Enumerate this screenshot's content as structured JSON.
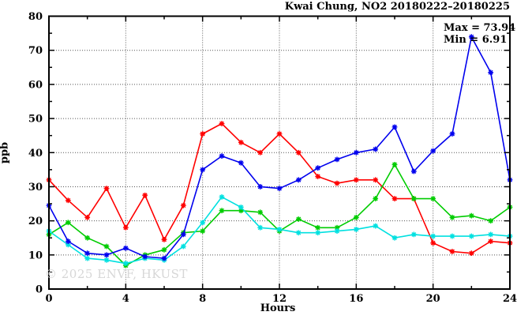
{
  "title": "Kwai Chung, NO2 20180222–20180225",
  "annotation": {
    "max_label": "Max = 73.94",
    "min_label": "Min = 6.91"
  },
  "watermark": "© 2025 ENVF, HKUST",
  "colors": {
    "background": "#ffffff",
    "frame": "#000000",
    "grid": "#555555",
    "text": "#000000",
    "watermark_text": "#d7d7d7"
  },
  "chart_data": {
    "type": "line",
    "title": "Kwai Chung, NO2 20180222–20180225",
    "xlabel": "Hours",
    "ylabel": "ppb",
    "xlim": [
      0,
      24
    ],
    "ylim": [
      0,
      80
    ],
    "grid": true,
    "x_ticks_major": [
      0,
      4,
      8,
      12,
      16,
      20,
      24
    ],
    "x_ticks_minor": [
      2,
      6,
      10,
      14,
      18,
      22
    ],
    "y_ticks_major": [
      0,
      10,
      20,
      30,
      40,
      50,
      60,
      70,
      80
    ],
    "y_ticks_minor": [
      5,
      15,
      25,
      35,
      45,
      55,
      65,
      75
    ],
    "max": 73.94,
    "min": 6.91,
    "x": [
      0,
      1,
      2,
      3,
      4,
      5,
      6,
      7,
      8,
      9,
      10,
      11,
      12,
      13,
      14,
      15,
      16,
      17,
      18,
      19,
      20,
      21,
      22,
      23,
      24
    ],
    "series": [
      {
        "name": "red",
        "color": "#ff0000",
        "values": [
          32,
          26,
          21,
          29.5,
          18,
          27.5,
          14.5,
          24.5,
          45.5,
          48.5,
          43,
          40,
          45.5,
          40,
          33,
          31,
          32,
          32,
          26.5,
          26.5,
          13.5,
          11,
          10.5,
          14,
          13.5
        ]
      },
      {
        "name": "green",
        "color": "#00cc00",
        "values": [
          16,
          19.5,
          15,
          12.5,
          6.91,
          10,
          11.5,
          16.5,
          17,
          23,
          23,
          22.5,
          17,
          20.5,
          18,
          18,
          21,
          26.5,
          36.5,
          26.5,
          26.5,
          21,
          21.5,
          20,
          24
        ]
      },
      {
        "name": "cyan",
        "color": "#00e0e0",
        "values": [
          17,
          13,
          9,
          8.5,
          7.5,
          9,
          8.5,
          12.5,
          19.5,
          27,
          24,
          18,
          17.5,
          16.5,
          16.5,
          17,
          17.5,
          18.5,
          15,
          16,
          15.5,
          15.5,
          15.5,
          16,
          15.5
        ]
      },
      {
        "name": "blue",
        "color": "#0000ee",
        "values": [
          24.5,
          14,
          10.5,
          10,
          12,
          9.5,
          9,
          16,
          35,
          39,
          37,
          30,
          29.5,
          32,
          35.5,
          38,
          40,
          41,
          47.5,
          34.5,
          40.5,
          45.5,
          73.94,
          63.5,
          32
        ]
      }
    ]
  }
}
